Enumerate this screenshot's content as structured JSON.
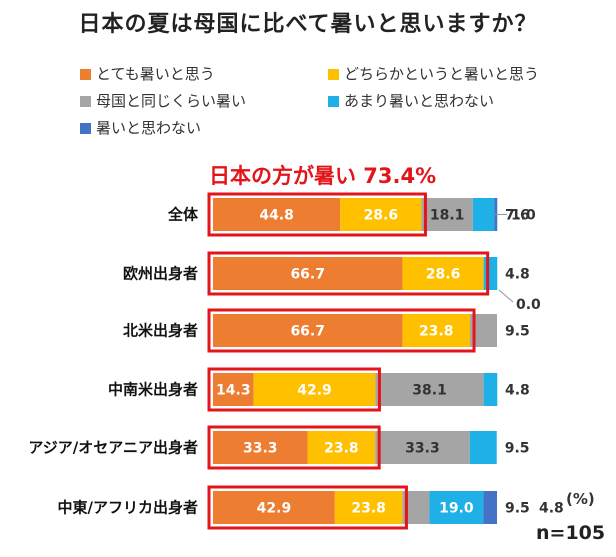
{
  "title": "日本の夏は母国に比べて暑いと思いますか？",
  "callout": "日本の方が暑い 73.4%",
  "unit": "(%)",
  "sample": "n=105",
  "colors": {
    "とても暑いと思う": "#ed7d31",
    "どちらかというと暑いと思う": "#ffc000",
    "母国と同じくらい暑い": "#a5a5a5",
    "あまり暑いと思わない": "#1fb0e8",
    "暑いと思わない": "#4472c4",
    "highlight": "#e3151a"
  },
  "chart_data": {
    "type": "bar",
    "orientation": "horizontal",
    "stacked": true,
    "title": "日本の夏は母国に比べて暑いと思いますか？",
    "categories": [
      "全体",
      "欧州出身者",
      "北米出身者",
      "中南米出身者",
      "アジア/オセアニア出身者",
      "中東/アフリカ出身者"
    ],
    "series": [
      {
        "name": "とても暑いと思う",
        "values": [
          44.8,
          66.7,
          66.7,
          14.3,
          33.3,
          42.9
        ]
      },
      {
        "name": "どちらかというと暑いと思う",
        "values": [
          28.6,
          28.6,
          23.8,
          42.9,
          23.8,
          23.8
        ]
      },
      {
        "name": "母国と同じくらい暑い",
        "values": [
          18.1,
          0.0,
          9.5,
          38.1,
          33.3,
          9.5
        ]
      },
      {
        "name": "あまり暑いと思わない",
        "values": [
          7.6,
          4.8,
          0.0,
          4.8,
          9.5,
          19.0
        ]
      },
      {
        "name": "暑いと思わない",
        "values": [
          1.0,
          0.0,
          0.0,
          0.0,
          0.0,
          4.8
        ]
      }
    ],
    "data_labels": [
      [
        "44.8",
        "28.6",
        "18.1",
        "7.6",
        "1.0"
      ],
      [
        "66.7",
        "28.6",
        "0.0",
        "4.8",
        ""
      ],
      [
        "66.7",
        "23.8",
        "9.5",
        "",
        ""
      ],
      [
        "14.3",
        "42.9",
        "38.1",
        "4.8",
        ""
      ],
      [
        "33.3",
        "23.8",
        "33.3",
        "9.5",
        ""
      ],
      [
        "42.9",
        "23.8",
        "9.5",
        "19.0",
        "4.8"
      ]
    ],
    "xlim": [
      0,
      100
    ],
    "legend_position": "top",
    "grid": false
  }
}
